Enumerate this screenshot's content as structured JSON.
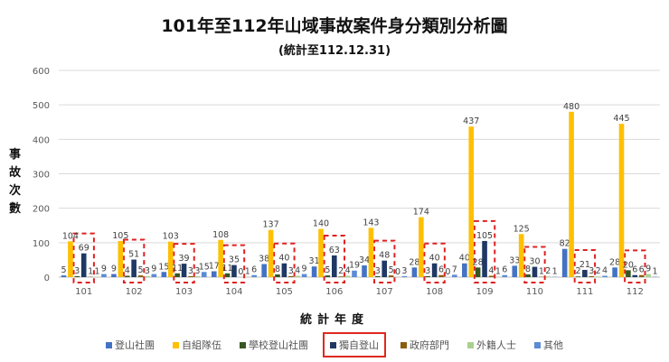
{
  "chart_data": {
    "type": "bar",
    "title": "101年至112年山域事故案件身分類別分析圖",
    "subtitle": "(統計至112.12.31)",
    "xlabel": "統計年度",
    "ylabel": "事故次數",
    "ylim": [
      0,
      600
    ],
    "yticks": [
      0,
      100,
      200,
      300,
      400,
      500,
      600
    ],
    "grid": true,
    "legend_position": "bottom",
    "highlighted_series": "獨自登山",
    "categories": [
      "101",
      "102",
      "103",
      "104",
      "105",
      "106",
      "107",
      "108",
      "109",
      "110",
      "111",
      "112"
    ],
    "series": [
      {
        "name": "登山社團",
        "color": "#4472c4",
        "values": [
          5,
          9,
          15,
          17,
          38,
          31,
          34,
          28,
          40,
          33,
          82,
          28
        ]
      },
      {
        "name": "自組隊伍",
        "color": "#ffc000",
        "values": [
          104,
          105,
          103,
          108,
          137,
          140,
          143,
          174,
          437,
          125,
          480,
          445
        ]
      },
      {
        "name": "學校登山社團",
        "color": "#375623",
        "values": [
          3,
          4,
          11,
          11,
          8,
          5,
          3,
          3,
          28,
          8,
          2,
          20
        ]
      },
      {
        "name": "獨自登山",
        "color": "#1f3864",
        "values": [
          69,
          51,
          39,
          35,
          40,
          63,
          48,
          40,
          105,
          30,
          21,
          6
        ]
      },
      {
        "name": "政府部門",
        "color": "#8b5e0f",
        "values": [
          1,
          5,
          3,
          0,
          3,
          2,
          5,
          6,
          4,
          1,
          3,
          6
        ]
      },
      {
        "name": "外籍人士",
        "color": "#a9d18e",
        "values": [
          1,
          3,
          3,
          1,
          4,
          4,
          0,
          0,
          1,
          2,
          2,
          9
        ]
      },
      {
        "name": "其他",
        "color": "#5b8bd5",
        "values": [
          9,
          9,
          15,
          6,
          9,
          19,
          3,
          7,
          6,
          1,
          4,
          1
        ]
      }
    ]
  }
}
